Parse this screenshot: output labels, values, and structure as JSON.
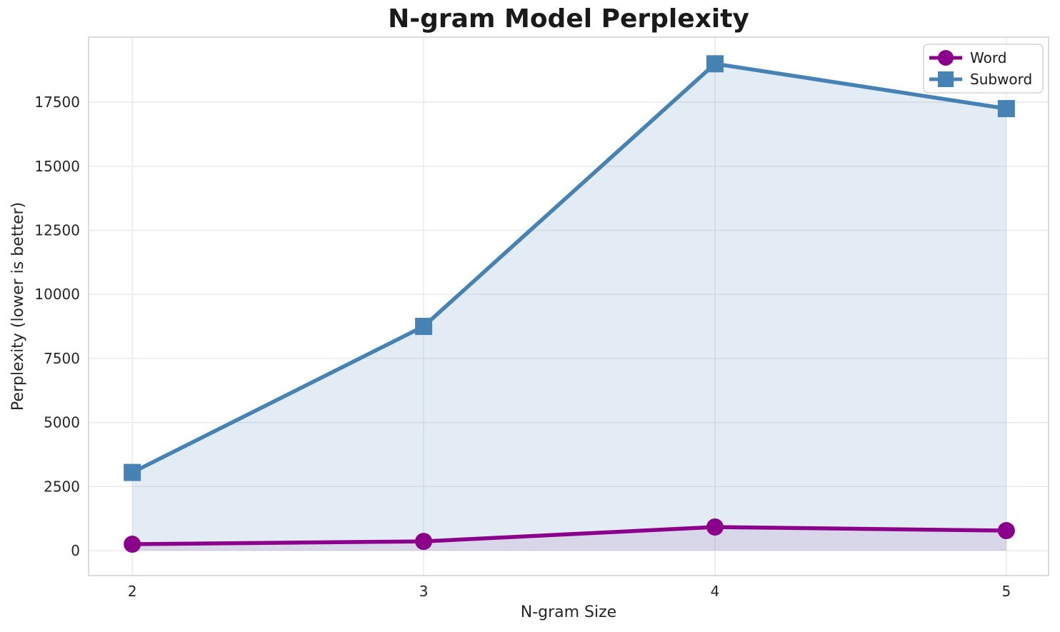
{
  "chart_data": {
    "type": "line",
    "title": "N-gram Model Perplexity",
    "xlabel": "N-gram Size",
    "ylabel": "Perplexity (lower is better)",
    "x": [
      2,
      3,
      4,
      5
    ],
    "xticks": [
      "2",
      "3",
      "4",
      "5"
    ],
    "yticks": [
      0,
      2500,
      5000,
      7500,
      10000,
      12500,
      15000,
      17500
    ],
    "xlim": [
      1.85,
      5.145
    ],
    "ylim": [
      -975,
      20040
    ],
    "grid": true,
    "legend_position": "upper right",
    "series": [
      {
        "name": "Word",
        "marker": "circle",
        "color": "#8B008B",
        "fill_color": "rgba(139,0,139,0.10)",
        "values": [
          250,
          360,
          920,
          780
        ]
      },
      {
        "name": "Subword",
        "marker": "square",
        "color": "#4682B4",
        "fill_color": "rgba(70,130,180,0.15)",
        "values": [
          3050,
          8750,
          19000,
          17250
        ]
      }
    ],
    "colors": {
      "background": "#FFFFFF",
      "gridline": "#E8E8E8",
      "spine": "#D2D2D2",
      "legend_border": "#CCCCCC",
      "title_text": "#1A1A1A",
      "tick_text": "#262626"
    }
  }
}
